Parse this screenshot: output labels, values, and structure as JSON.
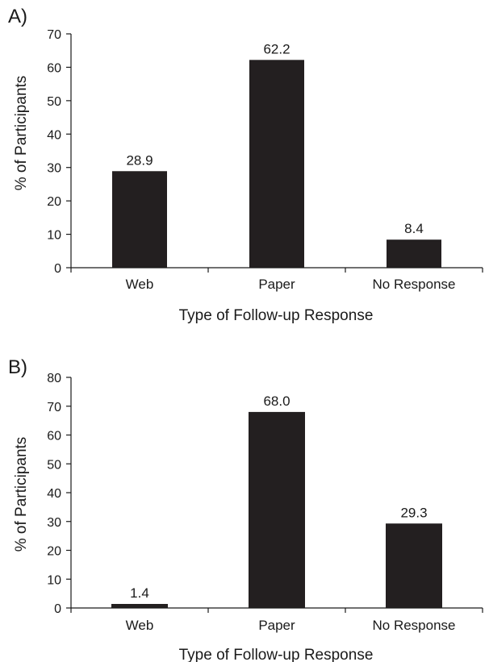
{
  "chart_data": [
    {
      "type": "bar",
      "panel_label": "A)",
      "categories": [
        "Web",
        "Paper",
        "No Response"
      ],
      "values": [
        28.9,
        62.2,
        8.4
      ],
      "data_labels": [
        "28.9",
        "62.2",
        "8.4"
      ],
      "xlabel": "Type of Follow-up Response",
      "ylabel": "% of Participants",
      "ylim": [
        0,
        70
      ],
      "yticks": [
        0,
        10,
        20,
        30,
        40,
        50,
        60,
        70
      ],
      "grid": false,
      "bar_color": "#231f20"
    },
    {
      "type": "bar",
      "panel_label": "B)",
      "categories": [
        "Web",
        "Paper",
        "No Response"
      ],
      "values": [
        1.4,
        68.0,
        29.3
      ],
      "data_labels": [
        "1.4",
        "68.0",
        "29.3"
      ],
      "xlabel": "Type of Follow-up Response",
      "ylabel": "% of Participants",
      "ylim": [
        0,
        80
      ],
      "yticks": [
        0,
        10,
        20,
        30,
        40,
        50,
        60,
        70,
        80
      ],
      "grid": false,
      "bar_color": "#231f20"
    }
  ]
}
